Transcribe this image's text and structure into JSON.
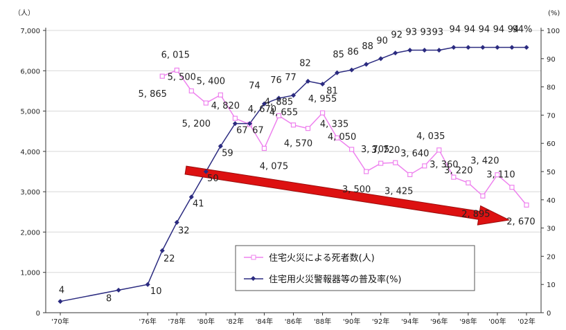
{
  "chart_data": {
    "type": "line",
    "title": "",
    "left_unit": "（人）",
    "right_unit": "(%)",
    "left_ylim": [
      0,
      7000
    ],
    "right_ylim": [
      0,
      100
    ],
    "left_ticks": [
      "0",
      "1,000",
      "2,000",
      "3,000",
      "4,000",
      "5,000",
      "6,000",
      "7,000"
    ],
    "left_tick_values": [
      0,
      1000,
      2000,
      3000,
      4000,
      5000,
      6000,
      7000
    ],
    "right_ticks": [
      "0",
      "10",
      "20",
      "30",
      "40",
      "50",
      "60",
      "70",
      "80",
      "90",
      "100"
    ],
    "right_tick_values": [
      0,
      10,
      20,
      30,
      40,
      50,
      60,
      70,
      80,
      90,
      100
    ],
    "x_labels": [
      "'70年",
      "'76年",
      "'78年",
      "'80年",
      "'82年",
      "'84年",
      "'86年",
      "'88年",
      "'90年",
      "'92年",
      "'94年",
      "'96年",
      "'98年",
      "'00年",
      "'02年"
    ],
    "x_label_years": [
      1970,
      1976,
      1978,
      1980,
      1982,
      1984,
      1986,
      1988,
      1990,
      1992,
      1994,
      1996,
      1998,
      2000,
      2002
    ],
    "legend_position": "bottom-right",
    "series": [
      {
        "name": "住宅火災による死者数(人)",
        "axis": "left",
        "color": "#ee82ee",
        "marker": "square",
        "x": [
          1977,
          1978,
          1979,
          1980,
          1981,
          1982,
          1983,
          1984,
          1985,
          1986,
          1987,
          1988,
          1989,
          1990,
          1991,
          1992,
          1993,
          1994,
          1995,
          1996,
          1997,
          1998,
          1999,
          2000,
          2001,
          2002
        ],
        "values": [
          5865,
          6015,
          5500,
          5200,
          5400,
          4820,
          4670,
          4075,
          4885,
          4655,
          4570,
          4955,
          4335,
          4050,
          3500,
          3705,
          3720,
          3425,
          3640,
          4035,
          3360,
          3220,
          2895,
          3420,
          3110,
          2670
        ],
        "labels": [
          "5, 865",
          "6, 015",
          "5, 500",
          "5, 200",
          "5, 400",
          "4, 820",
          "4, 670",
          "4, 075",
          "4, 885",
          "4, 655",
          "4, 570",
          "4, 955",
          "4, 335",
          "4, 050",
          "3, 500",
          "3, 705",
          "3, 720",
          "3, 425",
          "3, 640",
          "4, 035",
          "3, 360",
          "3, 220",
          "2, 895",
          "3, 420",
          "3, 110",
          "2, 670"
        ]
      },
      {
        "name": "住宅用火災警報器等の普及率(%)",
        "axis": "right",
        "color": "#2b2b80",
        "marker": "diamond",
        "x": [
          1970,
          1974,
          1976,
          1977,
          1978,
          1979,
          1980,
          1981,
          1982,
          1983,
          1984,
          1985,
          1986,
          1987,
          1988,
          1989,
          1990,
          1991,
          1992,
          1993,
          1994,
          1995,
          1996,
          1997,
          1998,
          1999,
          2000,
          2001,
          2002
        ],
        "values": [
          4,
          8,
          10,
          22,
          32,
          41,
          50,
          59,
          67,
          67,
          74,
          76,
          77,
          82,
          81,
          85,
          86,
          88,
          90,
          92,
          93,
          93,
          93,
          94,
          94,
          94,
          94,
          94,
          94
        ],
        "labels": [
          "4",
          "8",
          "10",
          "22",
          "32",
          "41",
          "50",
          "59",
          "67",
          "67",
          "74",
          "76",
          "77",
          "82",
          "81",
          "85",
          "86",
          "88",
          "90",
          "92",
          "93",
          "93",
          "93",
          "94",
          "94",
          "94",
          "94",
          "94",
          "94%"
        ]
      }
    ],
    "annotation": "red-downward-trend-arrow",
    "arrow_color": "#dd1111",
    "grid": true
  }
}
